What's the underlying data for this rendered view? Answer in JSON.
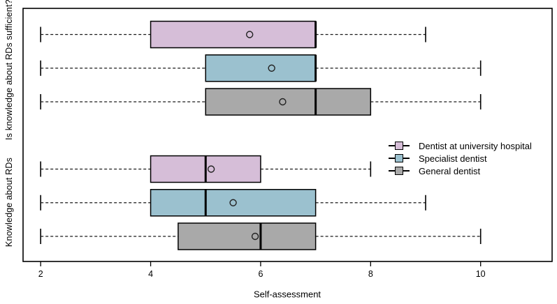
{
  "chart_data": {
    "type": "boxplot",
    "orientation": "horizontal",
    "title": "",
    "xlabel": "Self-assessment",
    "ylabel": "",
    "x_ticks": [
      2,
      4,
      6,
      8,
      10
    ],
    "xlim": [
      1.68,
      11.3
    ],
    "grid": false,
    "mean_marker": "open-circle",
    "groups": [
      {
        "label": "Is knowledge about RDs sufficient?",
        "boxes": [
          {
            "series": "Dentist at university hospital",
            "whisker_low": 2,
            "q1": 4,
            "median": 7,
            "q3": 7,
            "whisker_high": 9,
            "mean": 5.8
          },
          {
            "series": "Specialist dentist",
            "whisker_low": 2,
            "q1": 5,
            "median": 7,
            "q3": 7,
            "whisker_high": 10,
            "mean": 6.2
          },
          {
            "series": "General dentist",
            "whisker_low": 2,
            "q1": 5,
            "median": 7,
            "q3": 8,
            "whisker_high": 10,
            "mean": 6.4
          }
        ]
      },
      {
        "label": "Knowledge about RDs",
        "boxes": [
          {
            "series": "Dentist at university hospital",
            "whisker_low": 2,
            "q1": 4,
            "median": 5,
            "q3": 6,
            "whisker_high": 8,
            "mean": 5.1
          },
          {
            "series": "Specialist dentist",
            "whisker_low": 2,
            "q1": 4,
            "median": 5,
            "q3": 7,
            "whisker_high": 9,
            "mean": 5.5
          },
          {
            "series": "General dentist",
            "whisker_low": 2,
            "q1": 4.5,
            "median": 6,
            "q3": 7,
            "whisker_high": 10,
            "mean": 5.9
          }
        ]
      }
    ],
    "legend": {
      "position": "right-middle",
      "items": [
        {
          "label": "Dentist at university hospital",
          "color": "#d6bed8"
        },
        {
          "label": "Specialist dentist",
          "color": "#9bc1cf"
        },
        {
          "label": "General dentist",
          "color": "#a9a9a9"
        }
      ]
    },
    "colors": {
      "box_border": "#000000",
      "median_line": "#000000",
      "whisker": "#1a1a1a",
      "frame": "#000000",
      "background": "#ffffff"
    }
  }
}
